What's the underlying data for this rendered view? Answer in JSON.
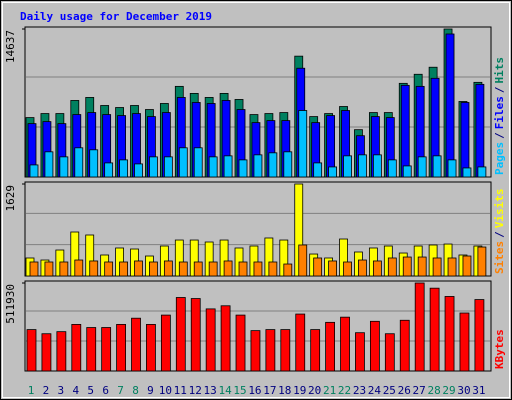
{
  "chart_data": [
    {
      "type": "bar",
      "title": "Daily usage for December 2019",
      "legend_separator": "/",
      "ylim": [
        0,
        14637
      ],
      "yticks": [
        14637
      ],
      "series": [
        {
          "name": "Hits",
          "color": "#008060",
          "values": [
            5876,
            6275,
            6275,
            7570,
            7868,
            7072,
            6872,
            7072,
            6673,
            7271,
            8964,
            8267,
            7868,
            8267,
            7669,
            6175,
            6275,
            6374,
            11952,
            5976,
            6275,
            6972,
            4681,
            6374,
            6374,
            9263,
            10159,
            10856,
            14637,
            7470,
            9362
          ]
        },
        {
          "name": "Files",
          "color": "#0000ff",
          "values": [
            5279,
            5478,
            5279,
            6175,
            6374,
            6175,
            6076,
            6275,
            5976,
            6374,
            7868,
            7370,
            7271,
            7570,
            6673,
            5378,
            5578,
            5578,
            10757,
            5378,
            6076,
            6574,
            4084,
            5976,
            5876,
            9064,
            8964,
            9761,
            14143,
            7370,
            9163
          ]
        },
        {
          "name": "Pages",
          "color": "#00c0ff",
          "values": [
            1195,
            2490,
            1992,
            2888,
            2689,
            1394,
            1693,
            1295,
            1992,
            1992,
            2888,
            2888,
            1992,
            2092,
            1693,
            2191,
            2390,
            2490,
            6574,
            1394,
            996,
            2092,
            2191,
            2191,
            1693,
            1096,
            1992,
            2092,
            1693,
            896,
            996
          ]
        }
      ]
    },
    {
      "type": "bar",
      "ylim": [
        0,
        1629
      ],
      "yticks": [
        1629
      ],
      "series": [
        {
          "name": "Visits",
          "color": "#ffff00",
          "values": [
            319,
            283,
            460,
            779,
            726,
            372,
            496,
            478,
            354,
            531,
            637,
            637,
            602,
            637,
            496,
            531,
            673,
            637,
            1629,
            389,
            319,
            655,
            425,
            496,
            531,
            407,
            531,
            549,
            566,
            372,
            531
          ]
        },
        {
          "name": "Sites",
          "color": "#ff8000",
          "values": [
            248,
            248,
            248,
            283,
            266,
            248,
            248,
            266,
            248,
            266,
            248,
            248,
            248,
            266,
            248,
            248,
            248,
            212,
            549,
            319,
            266,
            248,
            283,
            266,
            319,
            336,
            336,
            319,
            319,
            354,
            513
          ]
        }
      ]
    },
    {
      "type": "bar",
      "ylim": [
        0,
        511930
      ],
      "yticks": [
        511930
      ],
      "categories": [
        "1",
        "2",
        "3",
        "4",
        "5",
        "6",
        "7",
        "8",
        "9",
        "10",
        "11",
        "12",
        "13",
        "14",
        "15",
        "16",
        "17",
        "18",
        "19",
        "20",
        "21",
        "22",
        "23",
        "24",
        "25",
        "26",
        "27",
        "28",
        "29",
        "30",
        "31"
      ],
      "category_colors": [
        "#008060",
        "#000080",
        "#000080",
        "#000080",
        "#000080",
        "#000080",
        "#008060",
        "#008060",
        "#000080",
        "#000080",
        "#000080",
        "#000080",
        "#000080",
        "#008060",
        "#008060",
        "#000080",
        "#000080",
        "#000080",
        "#000080",
        "#000080",
        "#008060",
        "#008060",
        "#000080",
        "#000080",
        "#000080",
        "#000080",
        "#000080",
        "#008060",
        "#008060",
        "#000080",
        "#000080"
      ],
      "series": [
        {
          "name": "KBytes",
          "color": "#ff0000",
          "values": [
            240920,
            216828,
            228874,
            271035,
            252966,
            252966,
            271035,
            307173,
            271035,
            325242,
            427633,
            421610,
            361380,
            379449,
            325242,
            234897,
            240920,
            240920,
            331265,
            240920,
            283081,
            313196,
            222851,
            289104,
            216828,
            295127,
            511930,
            481840,
            433656,
            337288,
            415587
          ]
        }
      ]
    }
  ]
}
